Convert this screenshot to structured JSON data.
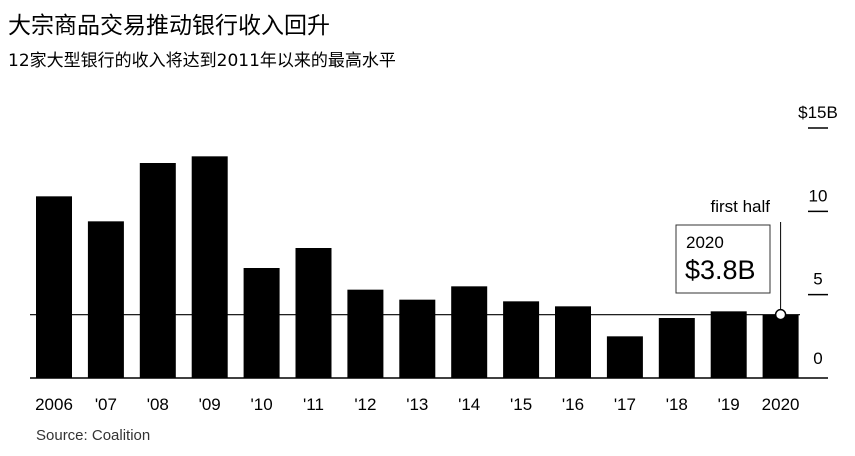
{
  "title": "大宗商品交易推动银行收入回升",
  "subtitle": "12家大型银行的收入将达到2011年以来的最高水平",
  "source": "Source: Coalition",
  "chart_data": {
    "type": "bar",
    "categories": [
      "2006",
      "'07",
      "'08",
      "'09",
      "'10",
      "'11",
      "'12",
      "'13",
      "'14",
      "'15",
      "'16",
      "'17",
      "'18",
      "'19",
      "2020"
    ],
    "values": [
      10.9,
      9.4,
      12.9,
      13.3,
      6.6,
      7.8,
      5.3,
      4.7,
      5.5,
      4.6,
      4.3,
      2.5,
      3.6,
      4.0,
      3.8
    ],
    "ylim": [
      0,
      15
    ],
    "yticks": [
      0,
      5,
      10,
      15
    ],
    "ytick_labels": [
      "0",
      "5",
      "10",
      "$15B"
    ],
    "grid": false,
    "reference_value": 3.8,
    "annotation": {
      "label": "first half",
      "box_year": "2020",
      "box_value": "$3.8B"
    },
    "colors": {
      "bar": "#000000",
      "line": "#000000",
      "tick": "#000000",
      "box_border": "#333333"
    }
  }
}
